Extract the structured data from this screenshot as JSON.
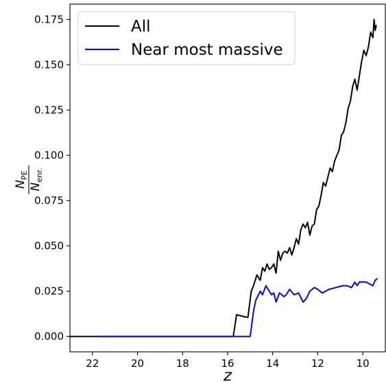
{
  "chart_data": {
    "type": "line",
    "xlabel": "z",
    "ylabel": {
      "N": "N",
      "num_sub": "PE",
      "den_sub": "enr."
    },
    "xlim": [
      23.0,
      9.0
    ],
    "ylim": [
      -0.0085,
      0.1835
    ],
    "x_inverted": true,
    "xticks": [
      22,
      20,
      18,
      16,
      14,
      12,
      10
    ],
    "xtick_labels": [
      "22",
      "20",
      "18",
      "16",
      "14",
      "12",
      "10"
    ],
    "yticks": [
      0.0,
      0.025,
      0.05,
      0.075,
      0.1,
      0.125,
      0.15,
      0.175
    ],
    "ytick_labels": [
      "0.000",
      "0.025",
      "0.050",
      "0.075",
      "0.100",
      "0.125",
      "0.150",
      "0.175"
    ],
    "grid": false,
    "legend_position": "top-left",
    "series": [
      {
        "name": "All",
        "color": "#000000",
        "x": [
          23.0,
          15.75,
          15.6,
          15.3,
          15.1,
          14.95,
          14.85,
          14.7,
          14.55,
          14.45,
          14.35,
          14.25,
          14.15,
          14.05,
          13.95,
          13.85,
          13.75,
          13.65,
          13.55,
          13.45,
          13.35,
          13.25,
          13.15,
          13.05,
          12.95,
          12.85,
          12.75,
          12.65,
          12.55,
          12.45,
          12.35,
          12.25,
          12.15,
          12.05,
          11.95,
          11.85,
          11.75,
          11.65,
          11.55,
          11.45,
          11.35,
          11.25,
          11.15,
          11.05,
          10.95,
          10.85,
          10.75,
          10.65,
          10.55,
          10.45,
          10.35,
          10.25,
          10.15,
          10.05,
          9.95,
          9.85,
          9.75,
          9.65,
          9.55,
          9.5,
          9.45,
          9.4
        ],
        "y": [
          0.0,
          0.0,
          0.012,
          0.011,
          0.0105,
          0.025,
          0.028,
          0.034,
          0.031,
          0.038,
          0.036,
          0.04,
          0.037,
          0.038,
          0.04,
          0.035,
          0.047,
          0.042,
          0.046,
          0.047,
          0.046,
          0.049,
          0.045,
          0.049,
          0.054,
          0.051,
          0.059,
          0.062,
          0.06,
          0.063,
          0.056,
          0.061,
          0.062,
          0.07,
          0.072,
          0.078,
          0.085,
          0.083,
          0.088,
          0.093,
          0.091,
          0.097,
          0.1,
          0.103,
          0.111,
          0.113,
          0.118,
          0.126,
          0.13,
          0.138,
          0.142,
          0.136,
          0.144,
          0.152,
          0.158,
          0.155,
          0.16,
          0.168,
          0.165,
          0.175,
          0.169,
          0.172
        ]
      },
      {
        "name": "Near most massive",
        "color": "#0000ff",
        "x": [
          21.7,
          15.0,
          14.85,
          14.75,
          14.55,
          14.45,
          14.3,
          14.2,
          14.05,
          13.95,
          13.85,
          13.7,
          13.5,
          13.4,
          13.25,
          13.05,
          12.85,
          12.65,
          12.5,
          12.35,
          12.15,
          12.0,
          11.8,
          11.5,
          11.2,
          10.9,
          10.7,
          10.5,
          10.35,
          10.25,
          10.15,
          10.05,
          9.95,
          9.85,
          9.7,
          9.55,
          9.45,
          9.35
        ],
        "y": [
          0.0,
          0.0,
          0.014,
          0.02,
          0.025,
          0.023,
          0.028,
          0.026,
          0.023,
          0.024,
          0.019,
          0.024,
          0.022,
          0.023,
          0.026,
          0.023,
          0.024,
          0.019,
          0.021,
          0.025,
          0.027,
          0.026,
          0.024,
          0.026,
          0.027,
          0.028,
          0.028,
          0.027,
          0.03,
          0.028,
          0.03,
          0.03,
          0.03,
          0.03,
          0.029,
          0.028,
          0.031,
          0.032
        ]
      }
    ]
  }
}
